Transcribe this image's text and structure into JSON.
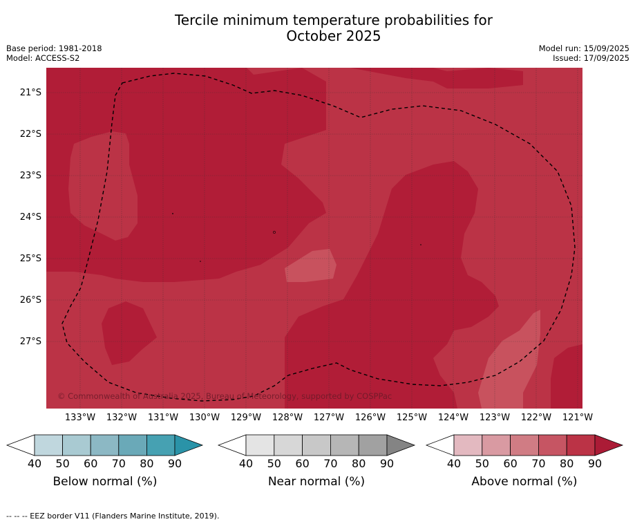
{
  "title_line1": "Tercile minimum temperature probabilities for",
  "title_line2": "October 2025",
  "meta_left": {
    "base_period": "Base period: 1981-2018",
    "model": "Model: ACCESS-S2"
  },
  "meta_right": {
    "model_run": "Model run: 15/09/2025",
    "issued": "Issued: 17/09/2025"
  },
  "map": {
    "latitude_labels": [
      "21°S",
      "22°S",
      "23°S",
      "24°S",
      "25°S",
      "26°S",
      "27°S"
    ],
    "longitude_labels": [
      "133°W",
      "132°W",
      "131°W",
      "130°W",
      "129°W",
      "128°W",
      "127°W",
      "126°W",
      "125°W",
      "124°W",
      "123°W",
      "122°W",
      "121°W"
    ],
    "copyright": "© Commonwealth of Australia 2025, Bureau of Meteorology, supported by COSPPac",
    "colors": {
      "above_70_80": "#bb3346",
      "above_80_90": "#b11d37",
      "above_60_70": "#c8525e",
      "grid": "#333333",
      "eez": "#000000"
    }
  },
  "colorbars": [
    {
      "name": "below",
      "label": "Below normal (%)",
      "ticks": [
        "40",
        "50",
        "60",
        "70",
        "80",
        "90"
      ],
      "colors": [
        "#ffffff",
        "#c0d7de",
        "#a9cad2",
        "#8cb8c4",
        "#6aa9b8",
        "#46a1b2",
        "#2a93a8"
      ]
    },
    {
      "name": "near",
      "label": "Near normal (%)",
      "ticks": [
        "40",
        "50",
        "60",
        "70",
        "80",
        "90"
      ],
      "colors": [
        "#ffffff",
        "#e4e4e4",
        "#d7d7d7",
        "#c8c8c8",
        "#b6b6b6",
        "#a1a1a1",
        "#848484"
      ]
    },
    {
      "name": "above",
      "label": "Above normal (%)",
      "ticks": [
        "40",
        "50",
        "60",
        "70",
        "80",
        "90"
      ],
      "colors": [
        "#ffffff",
        "#e3b9c0",
        "#d99aa2",
        "#d07c84",
        "#c65563",
        "#bb3346",
        "#ab1b36"
      ]
    }
  ],
  "footer": "-- -- -- EEZ border V11 (Flanders Marine Institute, 2019)."
}
